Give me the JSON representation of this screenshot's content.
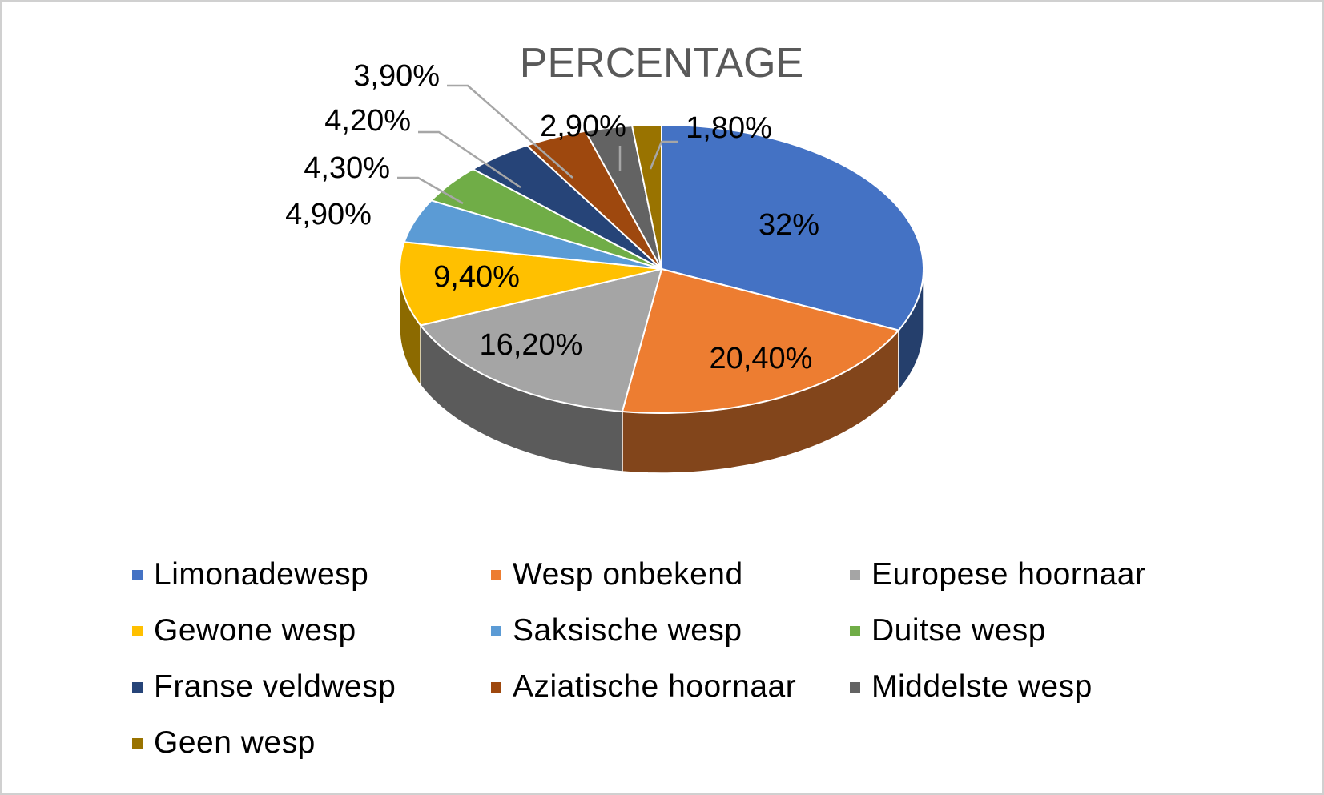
{
  "chart_data": {
    "type": "pie",
    "title": "PERCENTAGE",
    "three_d": true,
    "legend_position": "bottom",
    "slices": [
      {
        "name": "Limonadewesp",
        "value": 32,
        "label": "32%",
        "color": "#4472C4"
      },
      {
        "name": "Wesp onbekend",
        "value": 20.4,
        "label": "20,40%",
        "color": "#ED7D31"
      },
      {
        "name": "Europese hoornaar",
        "value": 16.2,
        "label": "16,20%",
        "color": "#A5A5A5"
      },
      {
        "name": "Gewone wesp",
        "value": 9.4,
        "label": "9,40%",
        "color": "#FFC000"
      },
      {
        "name": "Saksische wesp",
        "value": 4.9,
        "label": "4,90%",
        "color": "#5B9BD5"
      },
      {
        "name": "Duitse wesp",
        "value": 4.3,
        "label": "4,30%",
        "color": "#70AD47"
      },
      {
        "name": "Franse veldwesp",
        "value": 4.2,
        "label": "4,20%",
        "color": "#264478"
      },
      {
        "name": "Aziatische hoornaar",
        "value": 3.9,
        "label": "3,90%",
        "color": "#9E480E"
      },
      {
        "name": "Middelste wesp",
        "value": 2.9,
        "label": "2,90%",
        "color": "#636363"
      },
      {
        "name": "Geen wesp",
        "value": 1.8,
        "label": "1,80%",
        "color": "#997300"
      }
    ]
  }
}
